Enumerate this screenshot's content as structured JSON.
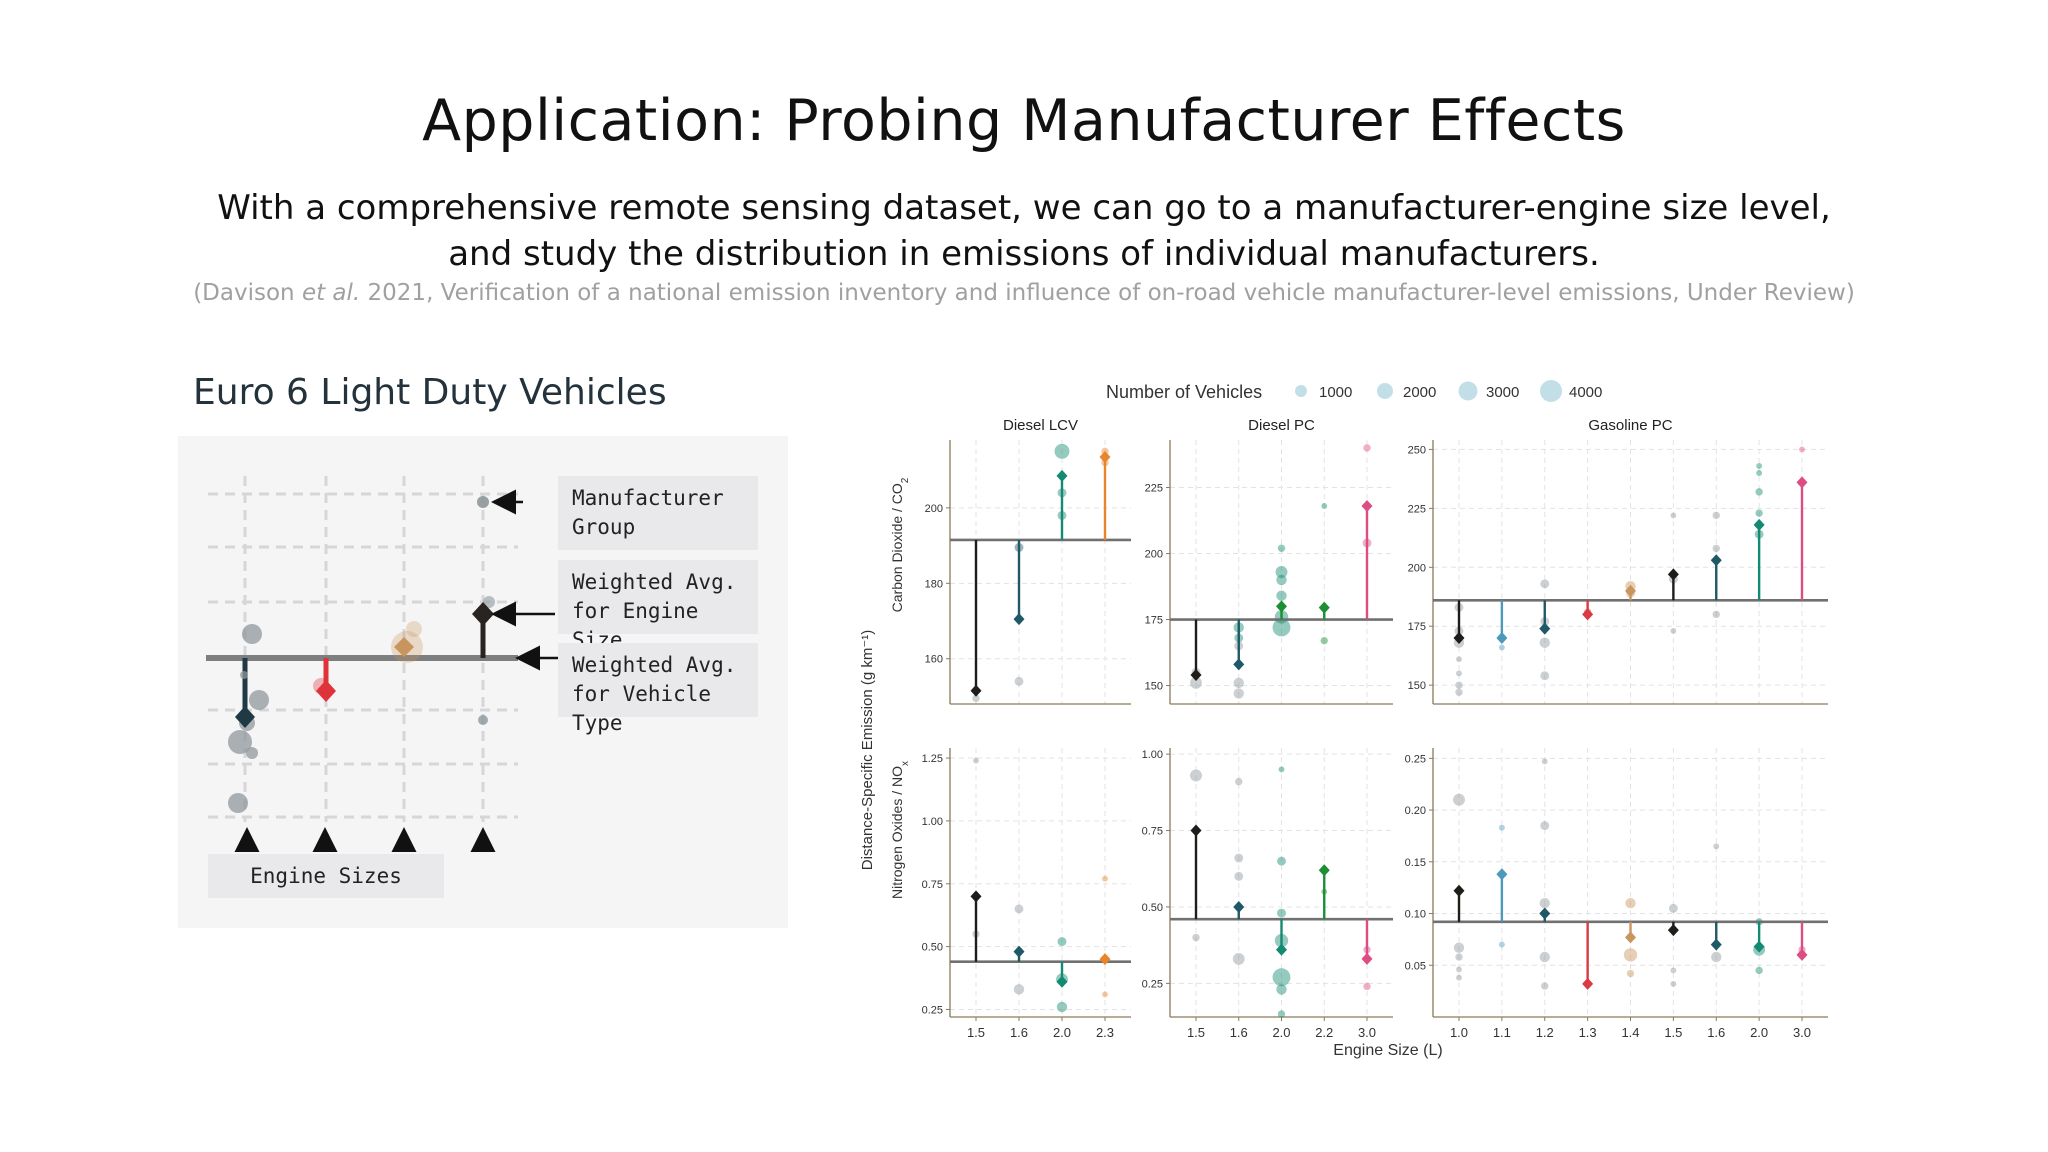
{
  "slide": {
    "title": "Application: Probing Manufacturer Effects",
    "subtitle_line1": "With a comprehensive remote sensing dataset, we can go to a manufacturer-engine size level,",
    "subtitle_line2": "and study the distribution in emissions of individual manufacturers.",
    "citation_open": "(Davison ",
    "citation_etal": "et al.",
    "citation_rest": " 2021, Verification of a national emission inventory and influence of on-road vehicle manufacturer-level emissions, Under Review)"
  },
  "schematic": {
    "heading": "Euro 6 Light Duty Vehicles",
    "callout_group_l1": "Manufacturer",
    "callout_group_l2": "Group",
    "callout_engine_l1": "Weighted Avg.",
    "callout_engine_l2": "for Engine Size",
    "callout_vehicle_l1": "Weighted Avg.",
    "callout_vehicle_l2": "for Vehicle Type",
    "engine_sizes_label": "Engine Sizes",
    "colors": {
      "dark_navy": "#1f3a44",
      "red": "#e0323a",
      "tan": "#c9955e",
      "dark_brown": "#2a2420",
      "grey": "#8f979b"
    }
  },
  "chart_data": {
    "type": "scatter",
    "legend": {
      "title": "Number of Vehicles",
      "sizes": [
        "1000",
        "2000",
        "3000",
        "4000"
      ],
      "position": "top"
    },
    "ylabel": "Distance-Specific Emission (g km⁻¹)",
    "xlabel": "Engine Size (L)",
    "rows": [
      {
        "label_main": "Carbon Dioxide / CO",
        "label_sub": "2"
      },
      {
        "label_main": "Nitrogen Oxides / NO",
        "label_sub": "x"
      }
    ],
    "colors": {
      "black": "#1f1d1a",
      "navy": "#1f5866",
      "teal": "#148a72",
      "orange": "#e8852c",
      "pink": "#dc4d83",
      "green": "#1b8e36",
      "blue": "#4e98bc",
      "red": "#d93a43",
      "tan": "#c9955e",
      "grey": "#8f979b"
    },
    "panels": [
      {
        "title": "Diesel LCV",
        "row": 0,
        "col": 0,
        "ylim": [
          148,
          218
        ],
        "yticks": [
          160,
          180,
          200
        ],
        "yticklabels": [
          "160",
          "180",
          "200"
        ],
        "x": [
          "1.5",
          "1.6",
          "2.0",
          "2.3"
        ],
        "baseline": 191.5,
        "segments": [
          {
            "x": 0,
            "y": 151.5,
            "c": "black"
          },
          {
            "x": 1,
            "y": 170.5,
            "c": "navy"
          },
          {
            "x": 2,
            "y": 208.5,
            "c": "teal"
          },
          {
            "x": 3,
            "y": 213.5,
            "c": "orange"
          }
        ],
        "points": [
          {
            "x": 0,
            "y": 149.5,
            "n": 2,
            "c": "grey"
          },
          {
            "x": 1,
            "y": 154,
            "n": 3,
            "c": "grey"
          },
          {
            "x": 1,
            "y": 189.5,
            "n": 3,
            "c": "navy"
          },
          {
            "x": 2,
            "y": 215,
            "n": 7,
            "c": "teal"
          },
          {
            "x": 2,
            "y": 204,
            "n": 3,
            "c": "teal"
          },
          {
            "x": 2,
            "y": 198,
            "n": 3,
            "c": "teal"
          },
          {
            "x": 3,
            "y": 215,
            "n": 2,
            "c": "orange"
          },
          {
            "x": 3,
            "y": 212,
            "n": 2,
            "c": "orange"
          }
        ]
      },
      {
        "title": "Diesel PC",
        "row": 0,
        "col": 1,
        "ylim": [
          143,
          243
        ],
        "yticks": [
          150,
          175,
          200,
          225
        ],
        "yticklabels": [
          "150",
          "175",
          "200",
          "225"
        ],
        "x": [
          "1.5",
          "1.6",
          "2.0",
          "2.2",
          "3.0"
        ],
        "baseline": 175,
        "segments": [
          {
            "x": 0,
            "y": 154,
            "c": "black"
          },
          {
            "x": 1,
            "y": 158,
            "c": "navy"
          },
          {
            "x": 2,
            "y": 180,
            "c": "green"
          },
          {
            "x": 3,
            "y": 179.5,
            "c": "green"
          },
          {
            "x": 4,
            "y": 218,
            "c": "pink"
          }
        ],
        "points": [
          {
            "x": 0,
            "y": 151,
            "n": 5,
            "c": "grey"
          },
          {
            "x": 0,
            "y": 155,
            "n": 3,
            "c": "grey"
          },
          {
            "x": 1,
            "y": 147,
            "n": 4,
            "c": "grey"
          },
          {
            "x": 1,
            "y": 151,
            "n": 4,
            "c": "grey"
          },
          {
            "x": 1,
            "y": 165,
            "n": 3,
            "c": "grey"
          },
          {
            "x": 1,
            "y": 168,
            "n": 3,
            "c": "teal"
          },
          {
            "x": 1,
            "y": 172,
            "n": 4,
            "c": "teal"
          },
          {
            "x": 2,
            "y": 172,
            "n": 9,
            "c": "teal"
          },
          {
            "x": 2,
            "y": 176,
            "n": 6,
            "c": "teal"
          },
          {
            "x": 2,
            "y": 184,
            "n": 4,
            "c": "teal"
          },
          {
            "x": 2,
            "y": 190,
            "n": 4,
            "c": "teal"
          },
          {
            "x": 2,
            "y": 193,
            "n": 5,
            "c": "teal"
          },
          {
            "x": 2,
            "y": 202,
            "n": 2,
            "c": "teal"
          },
          {
            "x": 3,
            "y": 218,
            "n": 1,
            "c": "teal"
          },
          {
            "x": 3,
            "y": 167,
            "n": 2,
            "c": "green"
          },
          {
            "x": 4,
            "y": 240,
            "n": 2,
            "c": "pink"
          },
          {
            "x": 4,
            "y": 204,
            "n": 3,
            "c": "pink"
          }
        ]
      },
      {
        "title": "Gasoline PC",
        "row": 0,
        "col": 2,
        "ylim": [
          142,
          254
        ],
        "yticks": [
          150,
          175,
          200,
          225,
          250
        ],
        "yticklabels": [
          "150",
          "175",
          "200",
          "225",
          "250"
        ],
        "x": [
          "1.0",
          "1.1",
          "1.2",
          "1.3",
          "1.4",
          "1.5",
          "1.6",
          "2.0",
          "3.0"
        ],
        "baseline": 186,
        "segments": [
          {
            "x": 0,
            "y": 170,
            "c": "black"
          },
          {
            "x": 1,
            "y": 170,
            "c": "blue"
          },
          {
            "x": 2,
            "y": 174,
            "c": "navy"
          },
          {
            "x": 3,
            "y": 180,
            "c": "red"
          },
          {
            "x": 4,
            "y": 190,
            "c": "tan"
          },
          {
            "x": 5,
            "y": 197,
            "c": "black"
          },
          {
            "x": 6,
            "y": 203,
            "c": "navy"
          },
          {
            "x": 7,
            "y": 218,
            "c": "teal"
          },
          {
            "x": 8,
            "y": 236,
            "c": "pink"
          }
        ],
        "points": [
          {
            "x": 0,
            "y": 183,
            "n": 3,
            "c": "grey"
          },
          {
            "x": 0,
            "y": 173,
            "n": 3,
            "c": "grey"
          },
          {
            "x": 0,
            "y": 168,
            "n": 4,
            "c": "grey"
          },
          {
            "x": 0,
            "y": 161,
            "n": 1,
            "c": "grey"
          },
          {
            "x": 0,
            "y": 155,
            "n": 1,
            "c": "grey"
          },
          {
            "x": 0,
            "y": 150,
            "n": 2,
            "c": "grey"
          },
          {
            "x": 0,
            "y": 147,
            "n": 2,
            "c": "grey"
          },
          {
            "x": 1,
            "y": 166,
            "n": 1,
            "c": "blue"
          },
          {
            "x": 2,
            "y": 193,
            "n": 3,
            "c": "grey"
          },
          {
            "x": 2,
            "y": 177,
            "n": 3,
            "c": "grey"
          },
          {
            "x": 2,
            "y": 168,
            "n": 4,
            "c": "grey"
          },
          {
            "x": 2,
            "y": 154,
            "n": 3,
            "c": "grey"
          },
          {
            "x": 3,
            "y": 181,
            "n": 2,
            "c": "red"
          },
          {
            "x": 4,
            "y": 192,
            "n": 4,
            "c": "tan"
          },
          {
            "x": 4,
            "y": 189,
            "n": 3,
            "c": "tan"
          },
          {
            "x": 5,
            "y": 222,
            "n": 1,
            "c": "grey"
          },
          {
            "x": 5,
            "y": 195,
            "n": 3,
            "c": "grey"
          },
          {
            "x": 5,
            "y": 173,
            "n": 1,
            "c": "grey"
          },
          {
            "x": 6,
            "y": 222,
            "n": 2,
            "c": "grey"
          },
          {
            "x": 6,
            "y": 208,
            "n": 2,
            "c": "grey"
          },
          {
            "x": 6,
            "y": 180,
            "n": 2,
            "c": "grey"
          },
          {
            "x": 7,
            "y": 243,
            "n": 1,
            "c": "teal"
          },
          {
            "x": 7,
            "y": 240,
            "n": 1,
            "c": "teal"
          },
          {
            "x": 7,
            "y": 232,
            "n": 2,
            "c": "teal"
          },
          {
            "x": 7,
            "y": 223,
            "n": 2,
            "c": "teal"
          },
          {
            "x": 7,
            "y": 214,
            "n": 3,
            "c": "teal"
          },
          {
            "x": 8,
            "y": 250,
            "n": 1,
            "c": "pink"
          }
        ]
      },
      {
        "title": "",
        "row": 1,
        "col": 0,
        "ylim": [
          0.22,
          1.29
        ],
        "yticks": [
          0.25,
          0.5,
          0.75,
          1.0,
          1.25
        ],
        "yticklabels": [
          "0.25",
          "0.50",
          "0.75",
          "1.00",
          "1.25"
        ],
        "x": [
          "1.5",
          "1.6",
          "2.0",
          "2.3"
        ],
        "baseline": 0.44,
        "segments": [
          {
            "x": 0,
            "y": 0.7,
            "c": "black"
          },
          {
            "x": 1,
            "y": 0.48,
            "c": "navy"
          },
          {
            "x": 2,
            "y": 0.36,
            "c": "teal"
          },
          {
            "x": 3,
            "y": 0.45,
            "c": "orange"
          }
        ],
        "points": [
          {
            "x": 0,
            "y": 1.24,
            "n": 1,
            "c": "grey"
          },
          {
            "x": 0,
            "y": 0.55,
            "n": 2,
            "c": "grey"
          },
          {
            "x": 1,
            "y": 0.65,
            "n": 3,
            "c": "grey"
          },
          {
            "x": 1,
            "y": 0.33,
            "n": 4,
            "c": "grey"
          },
          {
            "x": 2,
            "y": 0.52,
            "n": 3,
            "c": "teal"
          },
          {
            "x": 2,
            "y": 0.37,
            "n": 5,
            "c": "teal"
          },
          {
            "x": 2,
            "y": 0.26,
            "n": 4,
            "c": "teal"
          },
          {
            "x": 3,
            "y": 0.77,
            "n": 1,
            "c": "orange"
          },
          {
            "x": 3,
            "y": 0.31,
            "n": 1,
            "c": "orange"
          }
        ]
      },
      {
        "title": "",
        "row": 1,
        "col": 1,
        "ylim": [
          0.14,
          1.02
        ],
        "yticks": [
          0.25,
          0.5,
          0.75,
          1.0
        ],
        "yticklabels": [
          "0.25",
          "0.50",
          "0.75",
          "1.00"
        ],
        "x": [
          "1.5",
          "1.6",
          "2.0",
          "2.2",
          "3.0"
        ],
        "baseline": 0.46,
        "segments": [
          {
            "x": 0,
            "y": 0.75,
            "c": "black"
          },
          {
            "x": 1,
            "y": 0.5,
            "c": "navy"
          },
          {
            "x": 2,
            "y": 0.36,
            "c": "teal"
          },
          {
            "x": 3,
            "y": 0.62,
            "c": "green"
          },
          {
            "x": 4,
            "y": 0.33,
            "c": "pink"
          }
        ],
        "points": [
          {
            "x": 0,
            "y": 0.93,
            "n": 5,
            "c": "grey"
          },
          {
            "x": 0,
            "y": 0.4,
            "n": 2,
            "c": "grey"
          },
          {
            "x": 1,
            "y": 0.91,
            "n": 2,
            "c": "grey"
          },
          {
            "x": 1,
            "y": 0.66,
            "n": 3,
            "c": "grey"
          },
          {
            "x": 1,
            "y": 0.6,
            "n": 3,
            "c": "grey"
          },
          {
            "x": 1,
            "y": 0.33,
            "n": 5,
            "c": "grey"
          },
          {
            "x": 2,
            "y": 0.95,
            "n": 1,
            "c": "teal"
          },
          {
            "x": 2,
            "y": 0.65,
            "n": 3,
            "c": "teal"
          },
          {
            "x": 2,
            "y": 0.48,
            "n": 3,
            "c": "teal"
          },
          {
            "x": 2,
            "y": 0.39,
            "n": 6,
            "c": "teal"
          },
          {
            "x": 2,
            "y": 0.27,
            "n": 9,
            "c": "teal"
          },
          {
            "x": 2,
            "y": 0.23,
            "n": 4,
            "c": "teal"
          },
          {
            "x": 2,
            "y": 0.15,
            "n": 2,
            "c": "teal"
          },
          {
            "x": 3,
            "y": 0.55,
            "n": 1,
            "c": "green"
          },
          {
            "x": 4,
            "y": 0.36,
            "n": 2,
            "c": "pink"
          },
          {
            "x": 4,
            "y": 0.24,
            "n": 2,
            "c": "pink"
          }
        ]
      },
      {
        "title": "",
        "row": 1,
        "col": 2,
        "ylim": [
          0.0,
          0.26
        ],
        "yticks": [
          0.05,
          0.1,
          0.15,
          0.2,
          0.25
        ],
        "yticklabels": [
          "0.05",
          "0.10",
          "0.15",
          "0.20",
          "0.25"
        ],
        "x": [
          "1.0",
          "1.1",
          "1.2",
          "1.3",
          "1.4",
          "1.5",
          "1.6",
          "2.0",
          "3.0"
        ],
        "baseline": 0.092,
        "segments": [
          {
            "x": 0,
            "y": 0.122,
            "c": "black"
          },
          {
            "x": 1,
            "y": 0.138,
            "c": "blue"
          },
          {
            "x": 2,
            "y": 0.1,
            "c": "navy"
          },
          {
            "x": 3,
            "y": 0.032,
            "c": "red"
          },
          {
            "x": 4,
            "y": 0.077,
            "c": "tan"
          },
          {
            "x": 5,
            "y": 0.084,
            "c": "black"
          },
          {
            "x": 6,
            "y": 0.07,
            "c": "navy"
          },
          {
            "x": 7,
            "y": 0.068,
            "c": "teal"
          },
          {
            "x": 8,
            "y": 0.06,
            "c": "pink"
          }
        ],
        "points": [
          {
            "x": 0,
            "y": 0.21,
            "n": 5,
            "c": "grey"
          },
          {
            "x": 0,
            "y": 0.067,
            "n": 4,
            "c": "grey"
          },
          {
            "x": 0,
            "y": 0.058,
            "n": 2,
            "c": "grey"
          },
          {
            "x": 0,
            "y": 0.046,
            "n": 1,
            "c": "grey"
          },
          {
            "x": 0,
            "y": 0.038,
            "n": 1,
            "c": "grey"
          },
          {
            "x": 1,
            "y": 0.183,
            "n": 1,
            "c": "blue"
          },
          {
            "x": 1,
            "y": 0.07,
            "n": 1,
            "c": "blue"
          },
          {
            "x": 2,
            "y": 0.247,
            "n": 1,
            "c": "grey"
          },
          {
            "x": 2,
            "y": 0.185,
            "n": 3,
            "c": "grey"
          },
          {
            "x": 2,
            "y": 0.11,
            "n": 4,
            "c": "grey"
          },
          {
            "x": 2,
            "y": 0.058,
            "n": 4,
            "c": "grey"
          },
          {
            "x": 2,
            "y": 0.03,
            "n": 2,
            "c": "grey"
          },
          {
            "x": 4,
            "y": 0.11,
            "n": 4,
            "c": "tan"
          },
          {
            "x": 4,
            "y": 0.06,
            "n": 6,
            "c": "tan"
          },
          {
            "x": 4,
            "y": 0.042,
            "n": 2,
            "c": "tan"
          },
          {
            "x": 5,
            "y": 0.105,
            "n": 3,
            "c": "grey"
          },
          {
            "x": 5,
            "y": 0.045,
            "n": 1,
            "c": "grey"
          },
          {
            "x": 5,
            "y": 0.032,
            "n": 1,
            "c": "grey"
          },
          {
            "x": 6,
            "y": 0.165,
            "n": 1,
            "c": "grey"
          },
          {
            "x": 6,
            "y": 0.058,
            "n": 4,
            "c": "grey"
          },
          {
            "x": 7,
            "y": 0.092,
            "n": 2,
            "c": "teal"
          },
          {
            "x": 7,
            "y": 0.065,
            "n": 5,
            "c": "teal"
          },
          {
            "x": 7,
            "y": 0.045,
            "n": 2,
            "c": "teal"
          },
          {
            "x": 8,
            "y": 0.065,
            "n": 2,
            "c": "pink"
          }
        ]
      }
    ]
  }
}
